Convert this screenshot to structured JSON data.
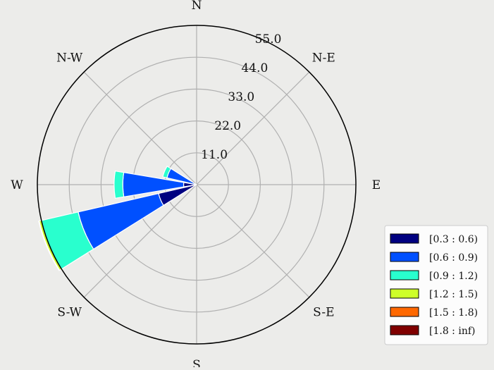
{
  "chart_data": {
    "type": "windrose",
    "title": "",
    "directions": [
      "N",
      "N-E",
      "E",
      "S-E",
      "S",
      "S-W",
      "W",
      "N-W"
    ],
    "radial_ticks": [
      "11.0",
      "22.0",
      "33.0",
      "44.0",
      "55.0"
    ],
    "radial_tick_values": [
      11,
      22,
      33,
      44,
      55
    ],
    "rmax": 55,
    "grid": true,
    "legend_position": "bottom-right",
    "bins": [
      {
        "label": "[0.3 : 0.6)",
        "color": "#000080"
      },
      {
        "label": "[0.6 : 0.9)",
        "color": "#0050ff"
      },
      {
        "label": "[0.9 : 1.2)",
        "color": "#29ffce"
      },
      {
        "label": "[1.2 : 1.5)",
        "color": "#ceff29"
      },
      {
        "label": "[1.5 : 1.8)",
        "color": "#ff6800"
      },
      {
        "label": "[1.8 : inf)",
        "color": "#800000"
      }
    ],
    "sectors": [
      {
        "direction_deg": 247.5,
        "cumulative": [
          13.5,
          42,
          55,
          55.8,
          56,
          56
        ]
      },
      {
        "direction_deg": 270,
        "cumulative": [
          4.5,
          25.5,
          28.5,
          28.5,
          28.5,
          28.5
        ]
      },
      {
        "direction_deg": 292.5,
        "cumulative": [
          0.5,
          10.5,
          12,
          12,
          12,
          12
        ]
      },
      {
        "direction_deg": 225,
        "cumulative": [
          0,
          0,
          0,
          0,
          0,
          0
        ]
      }
    ]
  }
}
